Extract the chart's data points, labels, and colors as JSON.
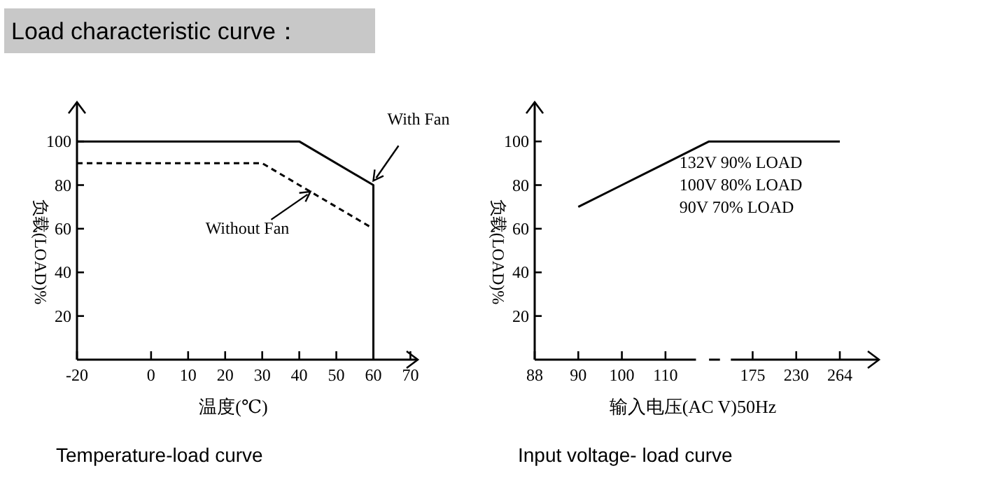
{
  "chart_data": [
    {
      "type": "line",
      "annotations": [
        "Load characteristic curve：",
        "Temperature-load curve",
        {
          "text": "With Fan",
          "x": 60,
          "y": 82
        },
        {
          "text": "Without Fan",
          "x": 43,
          "y": 77
        }
      ],
      "xlabel": "温度(℃)",
      "ylabel": "负载(LOAD)%",
      "xlim": [
        -20,
        72
      ],
      "ylim": [
        0,
        118
      ],
      "xticks": [
        -20,
        0,
        10,
        20,
        30,
        40,
        50,
        60,
        70
      ],
      "yticks": [
        20,
        40,
        60,
        80,
        100
      ],
      "series": [
        {
          "x": [
            -20,
            40,
            60,
            60
          ],
          "values": [
            100,
            100,
            80,
            0
          ],
          "color": "#000000",
          "line_style": "solid"
        },
        {
          "x": [
            -20,
            30,
            60
          ],
          "values": [
            90,
            90,
            60
          ],
          "color": "#000000",
          "line_style": "dashed"
        }
      ]
    },
    {
      "type": "line",
      "annotations": [
        "Input voltage- load curve",
        "132V 90% LOAD",
        "100V 80% LOAD",
        "90V 70% LOAD"
      ],
      "xlabel": "输入电压(AC V)50Hz",
      "ylabel": "负载(LOAD)%",
      "categories": [
        "88",
        "90",
        "100",
        "110",
        null,
        "175",
        "230",
        "264"
      ],
      "ylim": [
        0,
        118
      ],
      "yticks": [
        20,
        40,
        60,
        80,
        100
      ],
      "series": [
        {
          "values": [
            null,
            70,
            80,
            90,
            100,
            100,
            100,
            100
          ],
          "color": "#000000",
          "line_style": "solid"
        }
      ]
    }
  ]
}
